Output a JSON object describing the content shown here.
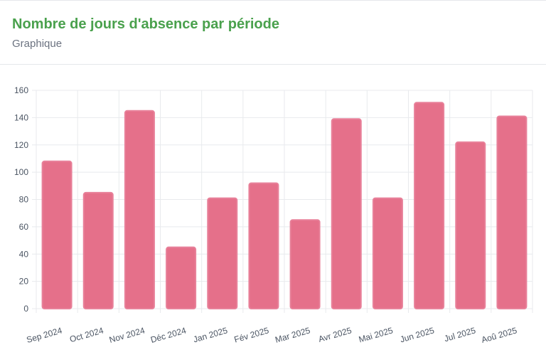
{
  "header": {
    "title": "Nombre de jours d'absence par période",
    "subtitle": "Graphique"
  },
  "chart_data": {
    "type": "bar",
    "title": "",
    "xlabel": "",
    "ylabel": "",
    "categories": [
      "Sep 2024",
      "Oct 2024",
      "Nov 2024",
      "Déc 2024",
      "Jan 2025",
      "Fév 2025",
      "Mar 2025",
      "Avr 2025",
      "Mai 2025",
      "Jun 2025",
      "Jul 2025",
      "Aoû 2025"
    ],
    "values": [
      108,
      85,
      145,
      45,
      81,
      92,
      65,
      139,
      81,
      151,
      122,
      141
    ],
    "ylim": [
      0,
      160
    ],
    "yticks": [
      0,
      20,
      40,
      60,
      80,
      100,
      120,
      140,
      160
    ],
    "grid": true,
    "legend": "none",
    "bar_color": "#e5708a",
    "bar_border_color": "#e8819a",
    "grid_color": "#e8eaed"
  }
}
